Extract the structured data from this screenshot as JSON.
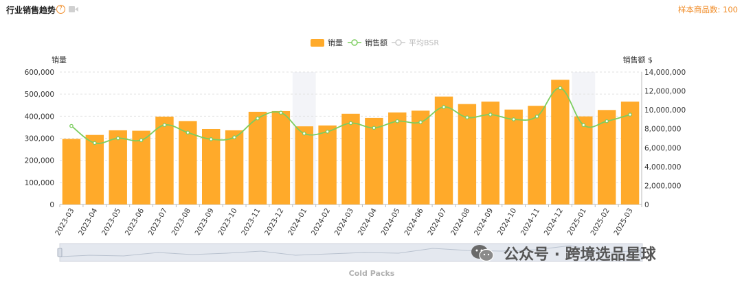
{
  "header": {
    "title": "行业销售趋势",
    "help_glyph": "?",
    "sample_count": "样本商品数: 100"
  },
  "legend": {
    "items": [
      {
        "label": "销量",
        "color": "#ffaa2a"
      },
      {
        "label": "销售额",
        "color": "#7ccd5f"
      },
      {
        "label": "平均BSR",
        "color": "#cccccc"
      }
    ]
  },
  "colors": {
    "bar": "#ffaa2a",
    "line": "#7ccd5f",
    "highlight": "#f3f4f8",
    "accent": "#f08a24"
  },
  "chart_data": {
    "type": "bar",
    "categories": [
      "2023-03",
      "2023-04",
      "2023-05",
      "2023-06",
      "2023-07",
      "2023-08",
      "2023-09",
      "2023-10",
      "2023-11",
      "2023-12",
      "2024-01",
      "2024-02",
      "2024-03",
      "2024-04",
      "2024-05",
      "2024-06",
      "2024-07",
      "2024-08",
      "2024-09",
      "2024-10",
      "2024-11",
      "2024-12",
      "2025-01",
      "2025-02",
      "2025-03"
    ],
    "highlighted_categories": [
      "2024-01",
      "2025-01"
    ],
    "series": [
      {
        "name": "销量",
        "type": "bar",
        "axis": "left",
        "values": [
          297000,
          315000,
          336000,
          334000,
          398000,
          378000,
          342000,
          336000,
          420000,
          423000,
          354000,
          358000,
          411000,
          392000,
          417000,
          425000,
          489000,
          455000,
          466000,
          430000,
          447000,
          565000,
          399000,
          428000,
          466000
        ]
      },
      {
        "name": "销售额",
        "type": "line",
        "axis": "right",
        "values": [
          8300000,
          6500000,
          7000000,
          6800000,
          8400000,
          7600000,
          6900000,
          7100000,
          9100000,
          9700000,
          7500000,
          7700000,
          8600000,
          8100000,
          8800000,
          8700000,
          10300000,
          9200000,
          9500000,
          9000000,
          9300000,
          12300000,
          8400000,
          8800000,
          9500000
        ]
      }
    ],
    "ylabel": "销量",
    "y2label": "销售额 $",
    "ylim": [
      0,
      600000
    ],
    "y2lim": [
      0,
      14000000
    ],
    "yticks": [
      "0",
      "100,000",
      "200,000",
      "300,000",
      "400,000",
      "500,000",
      "600,000"
    ],
    "y2ticks": [
      "0",
      "2,000,000",
      "4,000,000",
      "6,000,000",
      "8,000,000",
      "10,000,000",
      "12,000,000",
      "14,000,000"
    ],
    "grid": true,
    "legend_position": "top-center"
  },
  "zoom_slider": {
    "label": "Cold Packs"
  },
  "watermark": {
    "text": "公众号 · 跨境选品星球"
  }
}
